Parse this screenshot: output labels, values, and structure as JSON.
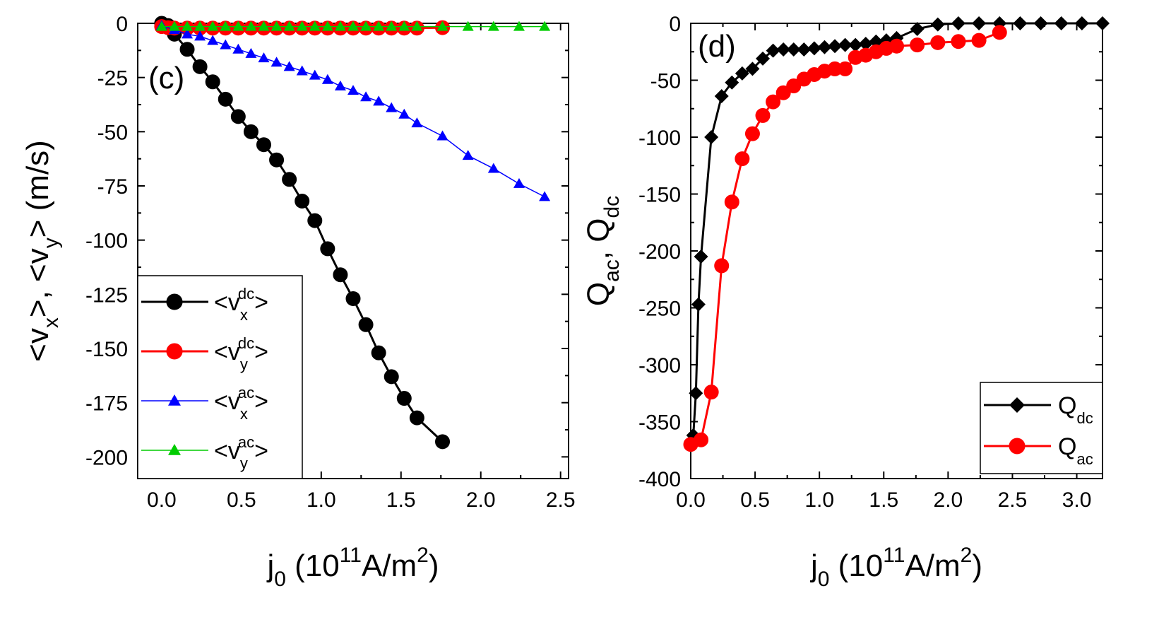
{
  "chart_data": [
    {
      "panel": "(c)",
      "type": "line",
      "xlabel": {
        "main": "j",
        "sub": "0",
        "paren_open": " (10",
        "sup": "11",
        "unit": "A/m",
        "unit_sup": "2",
        "paren_close": ")"
      },
      "ylabel": {
        "text": "<v_x>, <v_y> (m/s)"
      },
      "xlim": [
        -0.15,
        2.55
      ],
      "ylim": [
        -210,
        0
      ],
      "xticks": [
        0.0,
        0.5,
        1.0,
        1.5,
        2.0,
        2.5
      ],
      "xtick_labels": [
        "0.0",
        "0.5",
        "1.0",
        "1.5",
        "2.0",
        "2.5"
      ],
      "yticks": [
        0,
        -25,
        -50,
        -75,
        -100,
        -125,
        -150,
        -175,
        -200
      ],
      "ytick_labels": [
        "0",
        "-25",
        "-50",
        "-75",
        "-100",
        "-125",
        "-150",
        "-175",
        "-200"
      ],
      "legend_position": "bottom-left",
      "series": [
        {
          "name": "<v_x^dc>",
          "base": "<v",
          "sub": "x",
          "sup": "dc",
          "close": ">",
          "color": "#000000",
          "marker": "circle",
          "line": "solid",
          "x": [
            0.0,
            0.04,
            0.08,
            0.16,
            0.24,
            0.32,
            0.4,
            0.48,
            0.56,
            0.64,
            0.72,
            0.8,
            0.88,
            0.96,
            1.04,
            1.12,
            1.2,
            1.28,
            1.36,
            1.44,
            1.52,
            1.6,
            1.76
          ],
          "y": [
            0,
            -1,
            -5,
            -12,
            -20,
            -27,
            -35,
            -43,
            -50,
            -56,
            -63,
            -72,
            -82,
            -91,
            -104,
            -116,
            -127,
            -139,
            -152,
            -163,
            -173,
            -182,
            -193
          ]
        },
        {
          "name": "<v_y^dc>",
          "base": "<v",
          "sub": "y",
          "sup": "dc",
          "close": ">",
          "color": "#ff0000",
          "marker": "circle",
          "line": "solid",
          "x": [
            0.0,
            0.04,
            0.08,
            0.16,
            0.24,
            0.32,
            0.4,
            0.48,
            0.56,
            0.64,
            0.72,
            0.8,
            0.88,
            0.96,
            1.04,
            1.12,
            1.2,
            1.28,
            1.36,
            1.44,
            1.52,
            1.6,
            1.76
          ],
          "y": [
            -1.5,
            -2,
            -2.2,
            -2.2,
            -2.2,
            -2.2,
            -2.2,
            -2.2,
            -2.2,
            -2.2,
            -2.2,
            -2.2,
            -2.2,
            -2.2,
            -2.2,
            -2.2,
            -2.2,
            -2.2,
            -2.2,
            -2.2,
            -2.2,
            -2.2,
            -2
          ]
        },
        {
          "name": "<v_x^ac>",
          "base": "<v",
          "sub": "x",
          "sup": "ac",
          "close": ">",
          "color": "#0000ff",
          "marker": "triangle",
          "line": "thin",
          "x": [
            0.0,
            0.08,
            0.16,
            0.24,
            0.32,
            0.4,
            0.48,
            0.56,
            0.64,
            0.72,
            0.8,
            0.88,
            0.96,
            1.04,
            1.12,
            1.2,
            1.28,
            1.36,
            1.44,
            1.52,
            1.6,
            1.76,
            1.92,
            2.08,
            2.24,
            2.4
          ],
          "y": [
            -1,
            -3,
            -5,
            -6,
            -8,
            -10,
            -12,
            -14,
            -16,
            -18,
            -20,
            -22,
            -24,
            -26,
            -29,
            -31,
            -34,
            -36,
            -39,
            -42,
            -46,
            -52,
            -61,
            -67,
            -74,
            -80
          ]
        },
        {
          "name": "<v_y^ac>",
          "base": "<v",
          "sub": "y",
          "sup": "ac",
          "close": ">",
          "color": "#00cc00",
          "marker": "triangle",
          "line": "thin",
          "x": [
            0.0,
            0.08,
            0.16,
            0.24,
            0.32,
            0.4,
            0.48,
            0.56,
            0.64,
            0.72,
            0.8,
            0.88,
            0.96,
            1.04,
            1.12,
            1.2,
            1.28,
            1.36,
            1.44,
            1.52,
            1.6,
            1.76,
            1.92,
            2.08,
            2.24,
            2.4
          ],
          "y": [
            -1.5,
            -1.5,
            -1.5,
            -1.5,
            -1.5,
            -1.5,
            -1.5,
            -1.5,
            -1.5,
            -1.5,
            -1.5,
            -1.5,
            -1.5,
            -1.5,
            -1.5,
            -1.5,
            -1.5,
            -1.5,
            -1.5,
            -1.5,
            -1.5,
            -1.5,
            -1.5,
            -1.5,
            -1.5,
            -1.5
          ]
        }
      ]
    },
    {
      "panel": "(d)",
      "type": "line",
      "xlabel": {
        "main": "j",
        "sub": "0",
        "paren_open": " (10",
        "sup": "11",
        "unit": "A/m",
        "unit_sup": "2",
        "paren_close": ")"
      },
      "ylabel": {
        "text": "Q_ac, Q_dc"
      },
      "xlim": [
        0.0,
        3.2
      ],
      "ylim": [
        -400,
        0
      ],
      "xticks": [
        0.0,
        0.5,
        1.0,
        1.5,
        2.0,
        2.5,
        3.0
      ],
      "xtick_labels": [
        "0.0",
        "0.5",
        "1.0",
        "1.5",
        "2.0",
        "2.5",
        "3.0"
      ],
      "yticks": [
        0,
        -50,
        -100,
        -150,
        -200,
        -250,
        -300,
        -350,
        -400
      ],
      "ytick_labels": [
        "0",
        "-50",
        "-100",
        "-150",
        "-200",
        "-250",
        "-300",
        "-350",
        "-400"
      ],
      "legend_position": "bottom-right",
      "series": [
        {
          "name": "Q_dc",
          "base": "Q",
          "sub": "dc",
          "color": "#000000",
          "marker": "diamond",
          "line": "solid",
          "x": [
            0.0,
            0.02,
            0.04,
            0.06,
            0.08,
            0.16,
            0.24,
            0.32,
            0.4,
            0.48,
            0.56,
            0.64,
            0.72,
            0.8,
            0.88,
            0.96,
            1.04,
            1.12,
            1.2,
            1.28,
            1.36,
            1.44,
            1.52,
            1.6,
            1.76,
            1.92,
            2.08,
            2.24,
            2.4,
            2.56,
            2.72,
            2.88,
            3.04,
            3.2
          ],
          "y": [
            -370,
            -362,
            -325,
            -247,
            -205,
            -100,
            -64,
            -52,
            -44,
            -40,
            -31,
            -24,
            -23,
            -23,
            -23,
            -22,
            -21,
            -20,
            -19,
            -19,
            -18,
            -16,
            -15,
            -13,
            -5,
            -1,
            0,
            0,
            0,
            0,
            0,
            0,
            0,
            0
          ]
        },
        {
          "name": "Q_ac",
          "base": "Q",
          "sub": "ac",
          "color": "#ff0000",
          "marker": "circle",
          "line": "solid",
          "x": [
            0.0,
            0.08,
            0.16,
            0.24,
            0.32,
            0.4,
            0.48,
            0.56,
            0.64,
            0.72,
            0.8,
            0.88,
            0.96,
            1.04,
            1.12,
            1.2,
            1.28,
            1.36,
            1.44,
            1.52,
            1.6,
            1.76,
            1.92,
            2.08,
            2.24,
            2.4
          ],
          "y": [
            -370,
            -366,
            -324,
            -213,
            -157,
            -119,
            -97,
            -81,
            -69,
            -61,
            -55,
            -49,
            -45,
            -42,
            -40,
            -40,
            -30,
            -28,
            -25,
            -22,
            -20,
            -19,
            -17,
            -16,
            -15,
            -8
          ]
        }
      ]
    }
  ]
}
